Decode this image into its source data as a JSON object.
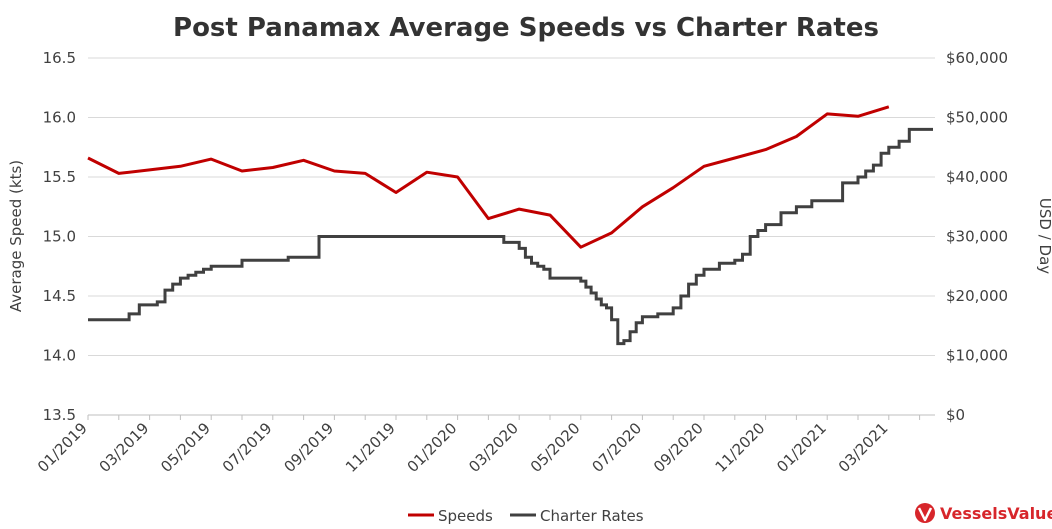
{
  "chart_data": {
    "type": "line",
    "title": "Post Panamax Average Speeds vs Charter Rates",
    "ylabel_left": "Average Speed (kts)",
    "ylabel_right": "USD / Day",
    "ylim_left": [
      13.5,
      16.5
    ],
    "ylim_right": [
      0,
      60000
    ],
    "x_range_months": [
      "01/2019",
      "04/2021"
    ],
    "x_tick_labels": [
      "01/2019",
      "03/2019",
      "05/2019",
      "07/2019",
      "09/2019",
      "11/2019",
      "01/2020",
      "03/2020",
      "05/2020",
      "07/2020",
      "09/2020",
      "11/2020",
      "01/2021",
      "03/2021"
    ],
    "y_left_ticks": [
      "13.5",
      "14.0",
      "14.5",
      "15.0",
      "15.5",
      "16.0",
      "16.5"
    ],
    "y_right_ticks": [
      "$0",
      "$10,000",
      "$20,000",
      "$30,000",
      "$40,000",
      "$50,000",
      "$60,000"
    ],
    "grid": true,
    "legend_position": "bottom",
    "series": [
      {
        "name": "Speeds",
        "axis": "left",
        "color": "#c00000",
        "points": [
          [
            "01/2019",
            15.66
          ],
          [
            "02/2019",
            15.53
          ],
          [
            "03/2019",
            15.56
          ],
          [
            "04/2019",
            15.59
          ],
          [
            "05/2019",
            15.65
          ],
          [
            "06/2019",
            15.55
          ],
          [
            "07/2019",
            15.58
          ],
          [
            "08/2019",
            15.64
          ],
          [
            "09/2019",
            15.55
          ],
          [
            "10/2019",
            15.53
          ],
          [
            "11/2019",
            15.37
          ],
          [
            "12/2019",
            15.54
          ],
          [
            "01/2020",
            15.5
          ],
          [
            "02/2020",
            15.15
          ],
          [
            "03/2020",
            15.23
          ],
          [
            "04/2020",
            15.18
          ],
          [
            "05/2020",
            14.91
          ],
          [
            "06/2020",
            15.03
          ],
          [
            "07/2020",
            15.25
          ],
          [
            "08/2020",
            15.41
          ],
          [
            "09/2020",
            15.59
          ],
          [
            "10/2020",
            15.66
          ],
          [
            "11/2020",
            15.73
          ],
          [
            "12/2020",
            15.84
          ],
          [
            "01/2021",
            16.03
          ],
          [
            "02/2021",
            16.01
          ],
          [
            "03/2021",
            16.09
          ]
        ]
      },
      {
        "name": "Charter Rates",
        "axis": "right",
        "color": "#404040",
        "points": [
          [
            "01/2019",
            16000
          ],
          [
            "02/2019",
            16000
          ],
          [
            "02/2019",
            17000
          ],
          [
            "02/2019",
            18500
          ],
          [
            "03/2019",
            18500
          ],
          [
            "03/2019",
            19000
          ],
          [
            "03/2019",
            21000
          ],
          [
            "03/2019",
            22000
          ],
          [
            "04/2019",
            23000
          ],
          [
            "04/2019",
            23500
          ],
          [
            "04/2019",
            24000
          ],
          [
            "04/2019",
            24500
          ],
          [
            "05/2019",
            25000
          ],
          [
            "06/2019",
            26000
          ],
          [
            "07/2019",
            26000
          ],
          [
            "07/2019",
            26500
          ],
          [
            "08/2019",
            26500
          ],
          [
            "08/2019",
            30000
          ],
          [
            "09/2019",
            30000
          ],
          [
            "10/2019",
            30000
          ],
          [
            "11/2019",
            30000
          ],
          [
            "12/2019",
            30000
          ],
          [
            "01/2020",
            30000
          ],
          [
            "02/2020",
            30000
          ],
          [
            "02/2020",
            29000
          ],
          [
            "03/2020",
            28000
          ],
          [
            "03/2020",
            26500
          ],
          [
            "03/2020",
            25500
          ],
          [
            "03/2020",
            25000
          ],
          [
            "03/2020",
            24500
          ],
          [
            "04/2020",
            23000
          ],
          [
            "04/2020",
            23000
          ],
          [
            "05/2020",
            22500
          ],
          [
            "05/2020",
            21500
          ],
          [
            "05/2020",
            20500
          ],
          [
            "05/2020",
            19500
          ],
          [
            "05/2020",
            18500
          ],
          [
            "05/2020",
            18000
          ],
          [
            "06/2020",
            16000
          ],
          [
            "06/2020",
            12000
          ],
          [
            "06/2020",
            12500
          ],
          [
            "06/2020",
            14000
          ],
          [
            "06/2020",
            15500
          ],
          [
            "07/2020",
            16500
          ],
          [
            "07/2020",
            17000
          ],
          [
            "08/2020",
            18000
          ],
          [
            "08/2020",
            20000
          ],
          [
            "08/2020",
            22000
          ],
          [
            "08/2020",
            23500
          ],
          [
            "09/2020",
            24500
          ],
          [
            "09/2020",
            25500
          ],
          [
            "10/2020",
            26000
          ],
          [
            "10/2020",
            27000
          ],
          [
            "10/2020",
            30000
          ],
          [
            "10/2020",
            31000
          ],
          [
            "11/2020",
            32000
          ],
          [
            "11/2020",
            34000
          ],
          [
            "12/2020",
            35000
          ],
          [
            "12/2020",
            36000
          ],
          [
            "01/2021",
            36000
          ],
          [
            "01/2021",
            39000
          ],
          [
            "02/2021",
            40000
          ],
          [
            "02/2021",
            41000
          ],
          [
            "02/2021",
            42000
          ],
          [
            "02/2021",
            44000
          ],
          [
            "03/2021",
            45000
          ],
          [
            "03/2021",
            46000
          ],
          [
            "03/2021",
            48000
          ],
          [
            "04/2021",
            48000
          ]
        ]
      }
    ]
  },
  "legend": {
    "speeds_label": "Speeds",
    "charter_label": "Charter Rates"
  },
  "brand": {
    "name": "VesselsValue",
    "color": "#d7262b"
  }
}
